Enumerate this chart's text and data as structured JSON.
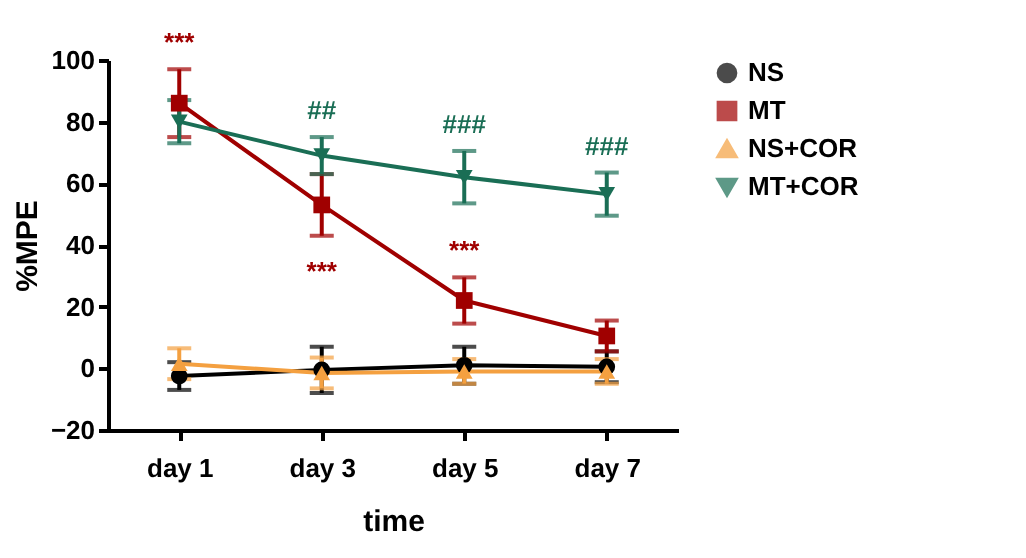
{
  "chart_data": {
    "type": "line",
    "xlabel": "time",
    "ylabel": "%MPE",
    "categories": [
      "day 1",
      "day 3",
      "day 5",
      "day 7"
    ],
    "ylim": [
      -20,
      100
    ],
    "yticks": [
      -20,
      0,
      20,
      40,
      60,
      80,
      100
    ],
    "grid": false,
    "legend": "right",
    "line_style": "solid",
    "series": [
      {
        "name": "NS",
        "color": "#000000",
        "marker": "circle",
        "values": [
          -2.5,
          -0.5,
          1,
          0.5
        ],
        "errors": [
          4.5,
          7.5,
          6,
          5
        ]
      },
      {
        "name": "MT",
        "color": "#a00000",
        "marker": "square",
        "values": [
          86,
          53,
          22,
          10.5
        ],
        "errors": [
          11,
          10,
          7.5,
          5
        ]
      },
      {
        "name": "NS+COR",
        "color": "#f4a040",
        "marker": "triangle",
        "values": [
          1.5,
          -1.5,
          -1,
          -1
        ],
        "errors": [
          5,
          5,
          4,
          4
        ]
      },
      {
        "name": "MT+COR",
        "color": "#1a6e55",
        "marker": "triangle-down",
        "values": [
          80,
          69,
          62,
          56.5
        ],
        "errors": [
          7,
          6,
          8.5,
          7
        ]
      }
    ],
    "annotations": [
      {
        "text": "***",
        "x": "day 1",
        "y": 97
      },
      {
        "text": "##",
        "x": "day 3",
        "y": 75
      },
      {
        "text": "###",
        "x": "day 5",
        "y": 70.5
      },
      {
        "text": "###",
        "x": "day 7",
        "y": 63.5
      },
      {
        "text": "***",
        "x": "day 3",
        "y": 43
      },
      {
        "text": "***",
        "x": "day 5",
        "y": 29.5
      }
    ]
  }
}
